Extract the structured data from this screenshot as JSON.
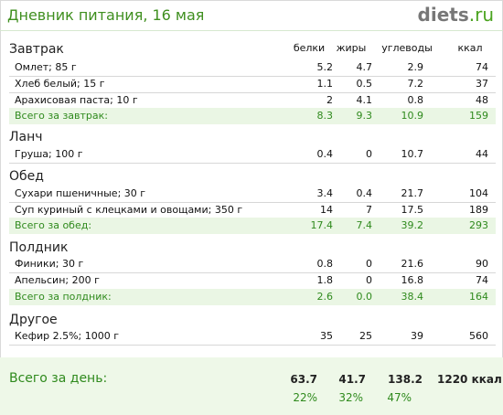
{
  "header": {
    "title": "Дневник питания, 16 мая",
    "logo_main": "diets",
    "logo_suffix": ".ru"
  },
  "columns": [
    "белки",
    "жиры",
    "углеводы",
    "ккал"
  ],
  "sections": [
    {
      "name": "Завтрак",
      "rows": [
        {
          "label": "Омлет; 85 г",
          "v": [
            "5.2",
            "4.7",
            "2.9",
            "74"
          ]
        },
        {
          "label": "Хлеб белый; 15 г",
          "v": [
            "1.1",
            "0.5",
            "7.2",
            "37"
          ]
        },
        {
          "label": "Арахисовая паста; 10 г",
          "v": [
            "2",
            "4.1",
            "0.8",
            "48"
          ]
        }
      ],
      "total": {
        "label": "Всего за завтрак:",
        "v": [
          "8.3",
          "9.3",
          "10.9",
          "159"
        ]
      }
    },
    {
      "name": "Ланч",
      "rows": [
        {
          "label": "Груша; 100 г",
          "v": [
            "0.4",
            "0",
            "10.7",
            "44"
          ]
        }
      ]
    },
    {
      "name": "Обед",
      "rows": [
        {
          "label": "Сухари пшеничные; 30 г",
          "v": [
            "3.4",
            "0.4",
            "21.7",
            "104"
          ]
        },
        {
          "label": "Суп куриный с клецками и овощами; 350 г",
          "v": [
            "14",
            "7",
            "17.5",
            "189"
          ]
        }
      ],
      "total": {
        "label": "Всего за обед:",
        "v": [
          "17.4",
          "7.4",
          "39.2",
          "293"
        ]
      }
    },
    {
      "name": "Полдник",
      "rows": [
        {
          "label": "Финики; 30 г",
          "v": [
            "0.8",
            "0",
            "21.6",
            "90"
          ]
        },
        {
          "label": "Апельсин; 200 г",
          "v": [
            "1.8",
            "0",
            "16.8",
            "74"
          ]
        }
      ],
      "total": {
        "label": "Всего за полдник:",
        "v": [
          "2.6",
          "0.0",
          "38.4",
          "164"
        ]
      }
    },
    {
      "name": "Другое",
      "rows": [
        {
          "label": "Кефир 2.5%; 1000 г",
          "v": [
            "35",
            "25",
            "39",
            "560"
          ]
        }
      ]
    }
  ],
  "day_total": {
    "label": "Всего за день:",
    "v": [
      "63.7",
      "41.7",
      "138.2"
    ],
    "kcal": "1220 ккал",
    "pct": [
      "22%",
      "32%",
      "47%"
    ]
  }
}
